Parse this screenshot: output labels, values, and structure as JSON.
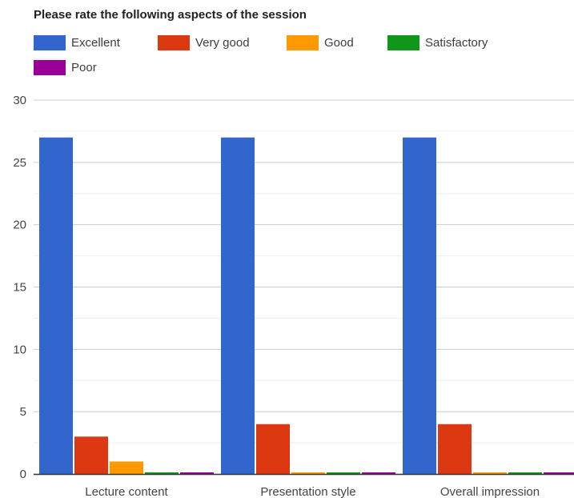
{
  "chart_data": {
    "type": "bar",
    "title": "Please rate the following aspects of the session",
    "categories": [
      "Lecture content",
      "Presentation style",
      "Overall impression"
    ],
    "series": [
      {
        "name": "Excellent",
        "color": "#3366cc",
        "values": [
          27,
          27,
          27
        ]
      },
      {
        "name": "Very good",
        "color": "#dc3912",
        "values": [
          3,
          4,
          4
        ]
      },
      {
        "name": "Good",
        "color": "#ff9900",
        "values": [
          1,
          0,
          0
        ]
      },
      {
        "name": "Satisfactory",
        "color": "#109618",
        "values": [
          0,
          0,
          0
        ]
      },
      {
        "name": "Poor",
        "color": "#990099",
        "values": [
          0,
          0,
          0
        ]
      }
    ],
    "ylim": [
      0,
      30
    ],
    "yticks": [
      0,
      5,
      10,
      15,
      20,
      25,
      30
    ],
    "ytick_labels": [
      "0",
      "5",
      "10",
      "15",
      "20",
      "25",
      "30"
    ],
    "grid": true,
    "legend_position": "top"
  }
}
